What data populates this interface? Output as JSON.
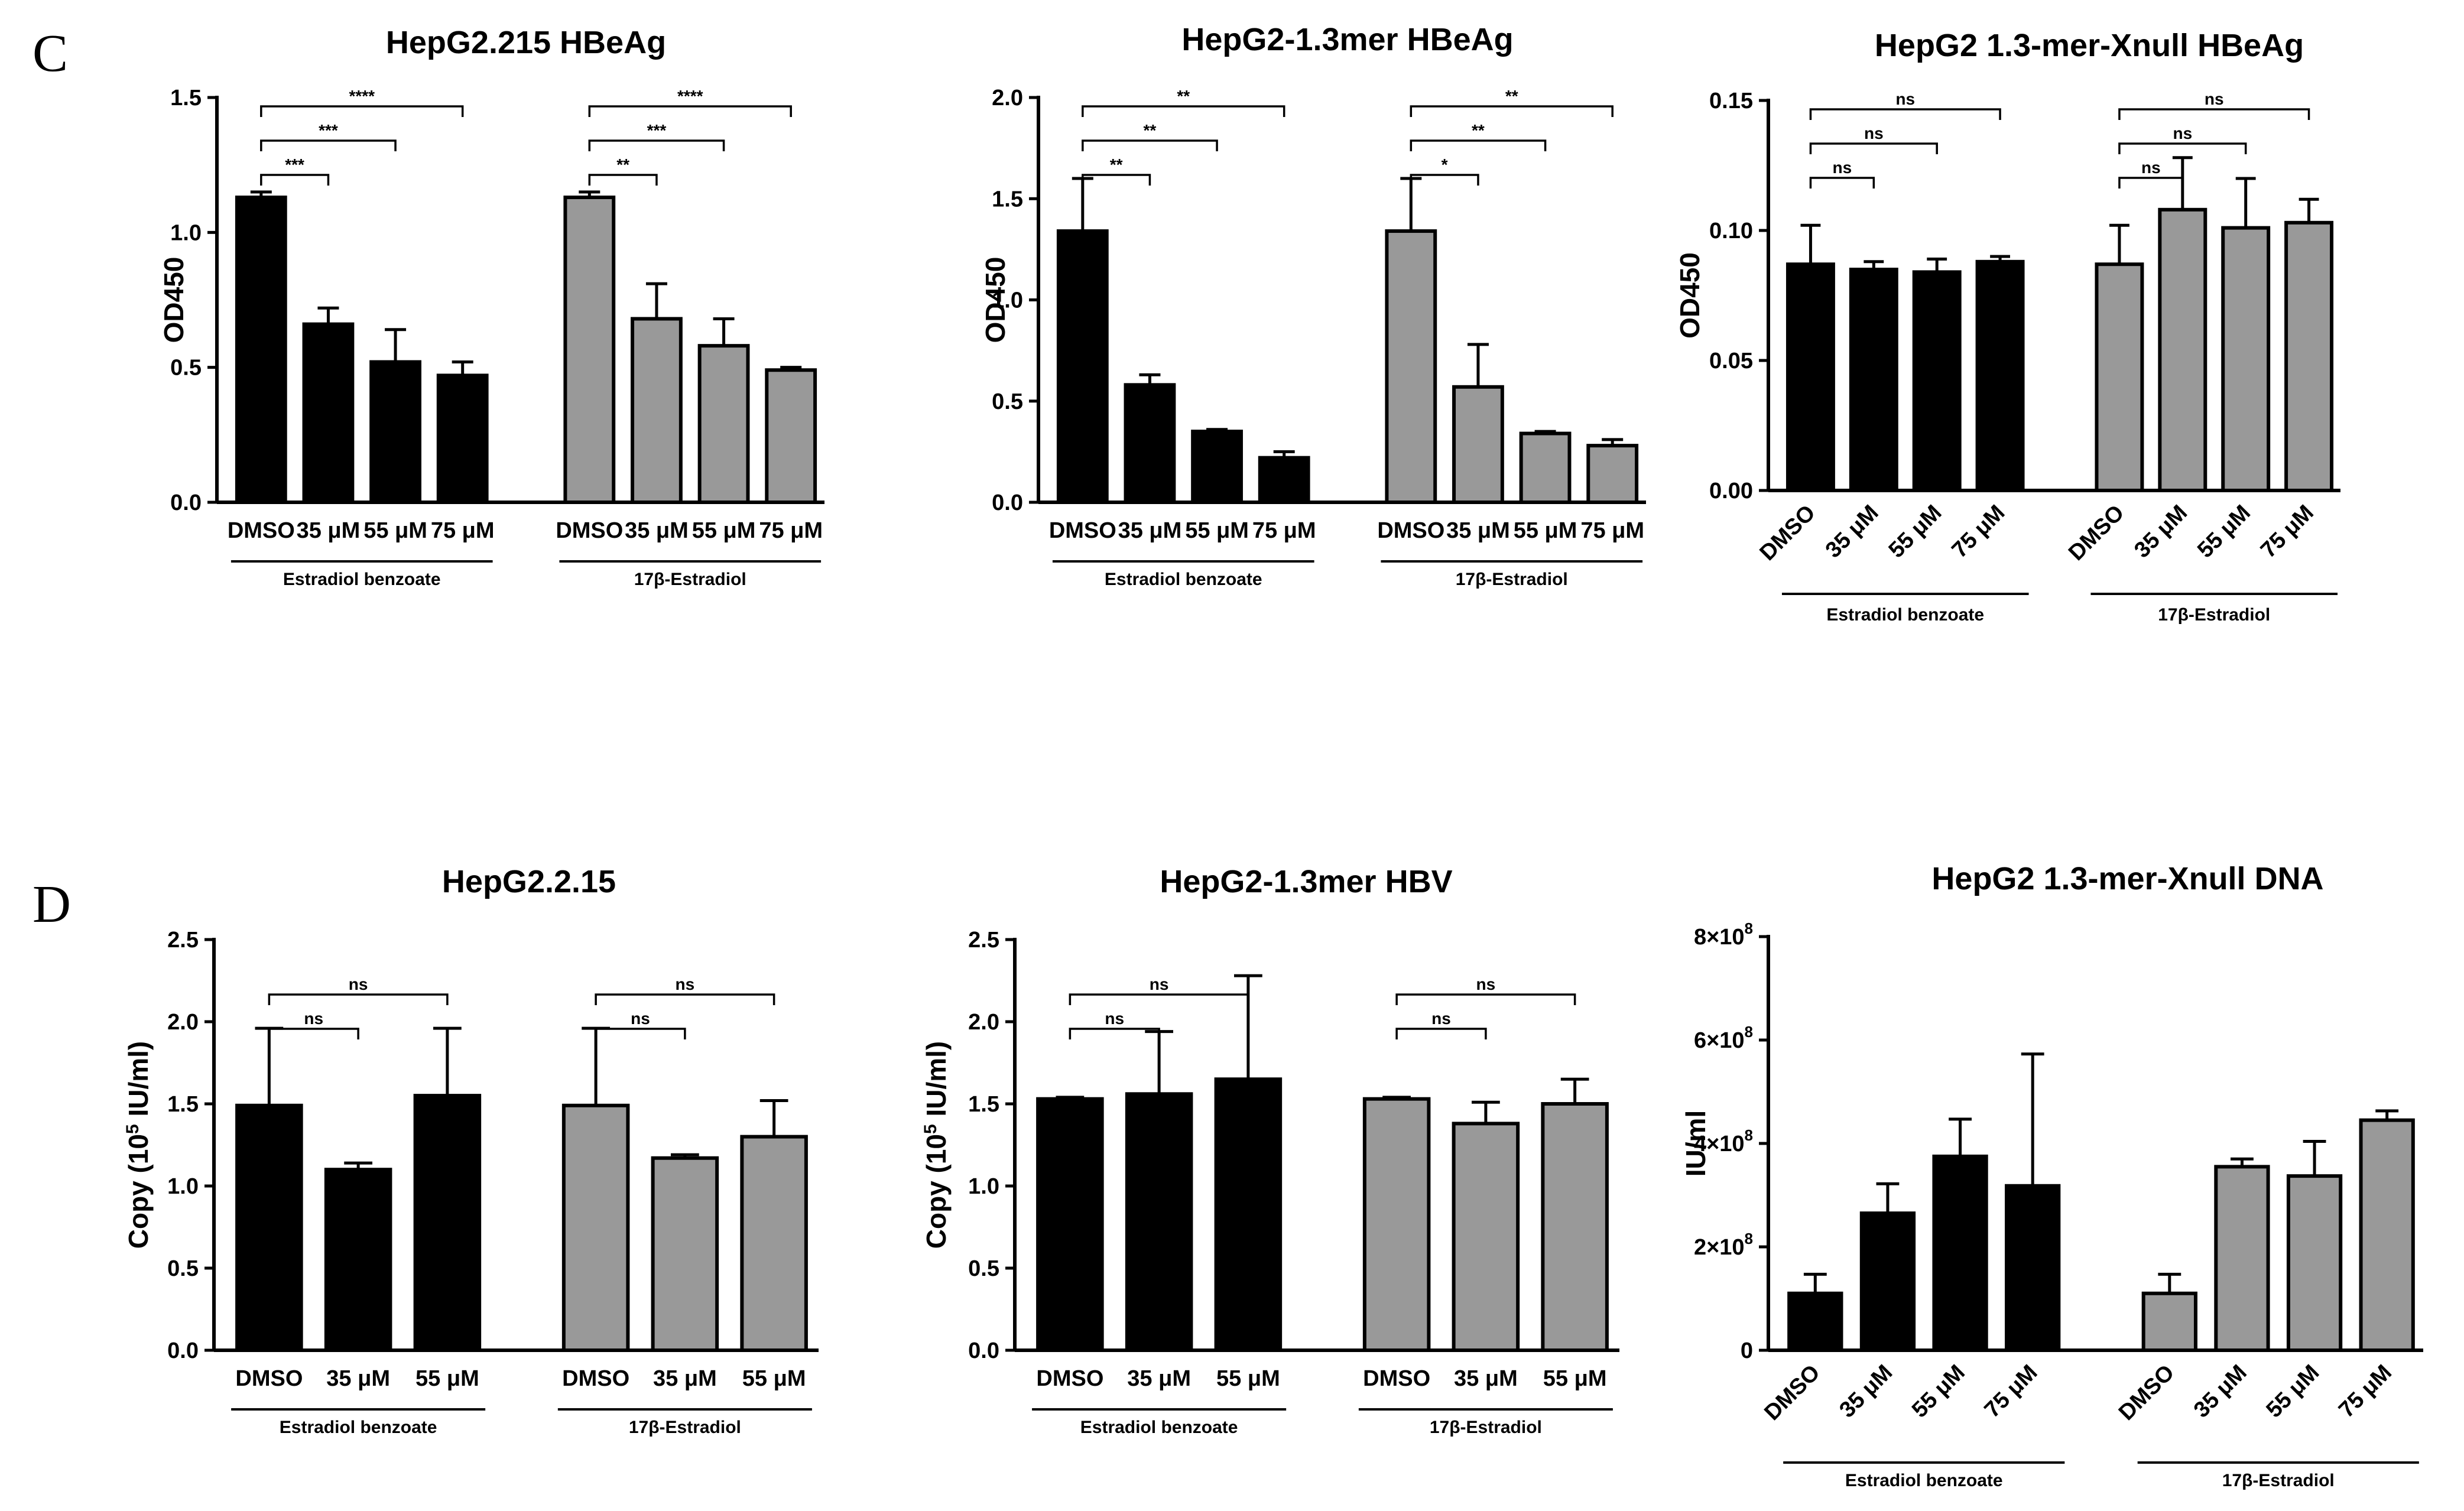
{
  "panel_labels": [
    "C",
    "D"
  ],
  "colors": {
    "estradiol_benzoate": "#000000",
    "estradiol_17b": "#999999",
    "edge": "#000000"
  },
  "chart_data": [
    {
      "type": "bar",
      "title": "HepG2.215   HBeAg",
      "ylabel": "OD450",
      "ylim": [
        0,
        1.5
      ],
      "yticks": [
        "0.0",
        "0.5",
        "1.0",
        "1.5"
      ],
      "yticks_values": [
        0,
        0.5,
        1.0,
        1.5
      ],
      "groups": [
        "Estradiol benzoate",
        "17β-Estradiol"
      ],
      "categories": [
        "DMSO",
        "35 μM",
        "55 μM",
        "75 μM"
      ],
      "rotated_labels": false,
      "series": [
        {
          "name": "Estradiol benzoate",
          "values": [
            1.13,
            0.66,
            0.52,
            0.47
          ],
          "errors": [
            0.02,
            0.06,
            0.12,
            0.05
          ]
        },
        {
          "name": "17β-Estradiol",
          "values": [
            1.13,
            0.68,
            0.58,
            0.49
          ],
          "errors": [
            0.02,
            0.13,
            0.1,
            0.01
          ]
        }
      ],
      "significance": [
        {
          "group": 0,
          "to": 1,
          "label": "***",
          "level": 0
        },
        {
          "group": 0,
          "to": 2,
          "label": "***",
          "level": 1
        },
        {
          "group": 0,
          "to": 3,
          "label": "****",
          "level": 2
        },
        {
          "group": 1,
          "to": 1,
          "label": "**",
          "level": 0
        },
        {
          "group": 1,
          "to": 2,
          "label": "***",
          "level": 1
        },
        {
          "group": 1,
          "to": 3,
          "label": "****",
          "level": 2
        }
      ]
    },
    {
      "type": "bar",
      "title": "HepG2-1.3mer HBeAg",
      "ylabel": "OD450",
      "ylim": [
        0,
        2.0
      ],
      "yticks": [
        "0.0",
        "0.5",
        "1.0",
        "1.5",
        "2.0"
      ],
      "yticks_values": [
        0,
        0.5,
        1.0,
        1.5,
        2.0
      ],
      "groups": [
        "Estradiol benzoate",
        "17β-Estradiol"
      ],
      "categories": [
        "DMSO",
        "35 μM",
        "55 μM",
        "75 μM"
      ],
      "rotated_labels": false,
      "series": [
        {
          "name": "Estradiol benzoate",
          "values": [
            1.34,
            0.58,
            0.35,
            0.22
          ],
          "errors": [
            0.26,
            0.05,
            0.01,
            0.03
          ]
        },
        {
          "name": "17β-Estradiol",
          "values": [
            1.34,
            0.57,
            0.34,
            0.28
          ],
          "errors": [
            0.26,
            0.21,
            0.01,
            0.03
          ]
        }
      ],
      "significance": [
        {
          "group": 0,
          "to": 1,
          "label": "**",
          "level": 0
        },
        {
          "group": 0,
          "to": 2,
          "label": "**",
          "level": 1
        },
        {
          "group": 0,
          "to": 3,
          "label": "**",
          "level": 2
        },
        {
          "group": 1,
          "to": 1,
          "label": "*",
          "level": 0
        },
        {
          "group": 1,
          "to": 2,
          "label": "**",
          "level": 1
        },
        {
          "group": 1,
          "to": 3,
          "label": "**",
          "level": 2
        }
      ]
    },
    {
      "type": "bar",
      "title": "HepG2 1.3-mer-Xnull HBeAg",
      "ylabel": "OD450",
      "ylim": [
        0,
        0.15
      ],
      "yticks": [
        "0.00",
        "0.05",
        "0.10",
        "0.15"
      ],
      "yticks_values": [
        0,
        0.05,
        0.1,
        0.15
      ],
      "groups": [
        "Estradiol benzoate",
        "17β-Estradiol"
      ],
      "categories": [
        "DMSO",
        "35 μM",
        "55 μM",
        "75 μM"
      ],
      "rotated_labels": true,
      "series": [
        {
          "name": "Estradiol benzoate",
          "values": [
            0.087,
            0.085,
            0.084,
            0.088
          ],
          "errors": [
            0.015,
            0.003,
            0.005,
            0.002
          ]
        },
        {
          "name": "17β-Estradiol",
          "values": [
            0.087,
            0.108,
            0.101,
            0.103
          ],
          "errors": [
            0.015,
            0.02,
            0.019,
            0.009
          ]
        }
      ],
      "significance": [
        {
          "group": 0,
          "to": 1,
          "label": "ns",
          "level": 0
        },
        {
          "group": 0,
          "to": 2,
          "label": "ns",
          "level": 1
        },
        {
          "group": 0,
          "to": 3,
          "label": "ns",
          "level": 2
        },
        {
          "group": 1,
          "to": 1,
          "label": "ns",
          "level": 0
        },
        {
          "group": 1,
          "to": 2,
          "label": "ns",
          "level": 1
        },
        {
          "group": 1,
          "to": 3,
          "label": "ns",
          "level": 2
        }
      ]
    },
    {
      "type": "bar",
      "title": "HepG2.2.15",
      "ylabel": "Copy (10",
      "ylabel_sup": "5",
      "ylabel_suffix": " IU/ml)",
      "ylim": [
        0,
        2.5
      ],
      "yticks": [
        "0.0",
        "0.5",
        "1.0",
        "1.5",
        "2.0",
        "2.5"
      ],
      "yticks_values": [
        0,
        0.5,
        1.0,
        1.5,
        2.0,
        2.5
      ],
      "groups": [
        "Estradiol benzoate",
        "17β-Estradiol"
      ],
      "categories": [
        "DMSO",
        "35 μM",
        "55 μM"
      ],
      "rotated_labels": false,
      "series": [
        {
          "name": "Estradiol benzoate",
          "values": [
            1.49,
            1.1,
            1.55
          ],
          "errors": [
            0.47,
            0.04,
            0.41
          ]
        },
        {
          "name": "17β-Estradiol",
          "values": [
            1.49,
            1.17,
            1.3
          ],
          "errors": [
            0.47,
            0.02,
            0.22
          ]
        }
      ],
      "significance": [
        {
          "group": 0,
          "to": 1,
          "label": "ns",
          "level": 0
        },
        {
          "group": 0,
          "to": 2,
          "label": "ns",
          "level": 1
        },
        {
          "group": 1,
          "to": 1,
          "label": "ns",
          "level": 0
        },
        {
          "group": 1,
          "to": 2,
          "label": "ns",
          "level": 1
        }
      ]
    },
    {
      "type": "bar",
      "title": "HepG2-1.3mer HBV",
      "ylabel": "Copy (10",
      "ylabel_sup": "5",
      "ylabel_suffix": " IU/ml)",
      "ylim": [
        0,
        2.5
      ],
      "yticks": [
        "0.0",
        "0.5",
        "1.0",
        "1.5",
        "2.0",
        "2.5"
      ],
      "yticks_values": [
        0,
        0.5,
        1.0,
        1.5,
        2.0,
        2.5
      ],
      "groups": [
        "Estradiol benzoate",
        "17β-Estradiol"
      ],
      "categories": [
        "DMSO",
        "35 μM",
        "55 μM"
      ],
      "rotated_labels": false,
      "series": [
        {
          "name": "Estradiol benzoate",
          "values": [
            1.53,
            1.56,
            1.65
          ],
          "errors": [
            0.01,
            0.38,
            0.63
          ]
        },
        {
          "name": "17β-Estradiol",
          "values": [
            1.53,
            1.38,
            1.5
          ],
          "errors": [
            0.01,
            0.13,
            0.15
          ]
        }
      ],
      "significance": [
        {
          "group": 0,
          "to": 1,
          "label": "ns",
          "level": 0
        },
        {
          "group": 0,
          "to": 2,
          "label": "ns",
          "level": 1
        },
        {
          "group": 1,
          "to": 1,
          "label": "ns",
          "level": 0
        },
        {
          "group": 1,
          "to": 2,
          "label": "ns",
          "level": 1
        }
      ]
    },
    {
      "type": "bar",
      "title": "HepG2 1.3-mer-Xnull DNA",
      "ylabel": "IU/ml",
      "ylim": [
        0,
        800000000
      ],
      "yticks": [
        "0",
        "2×10",
        "4×10",
        "6×10",
        "8×10"
      ],
      "yticks_sup": [
        "",
        "8",
        "8",
        "8",
        "8"
      ],
      "yticks_values": [
        0,
        200000000,
        400000000,
        600000000,
        800000000
      ],
      "groups": [
        "Estradiol benzoate",
        "17β-Estradiol"
      ],
      "categories": [
        "DMSO",
        "35 μM",
        "55 μM",
        "75 μM"
      ],
      "rotated_labels": true,
      "series": [
        {
          "name": "Estradiol benzoate",
          "values": [
            110000000,
            265000000,
            375000000,
            318000000
          ],
          "errors": [
            37000000,
            57000000,
            72000000,
            255000000
          ]
        },
        {
          "name": "17β-Estradiol",
          "values": [
            110000000,
            355000000,
            337000000,
            445000000
          ],
          "errors": [
            37000000,
            15000000,
            67000000,
            18000000
          ]
        }
      ],
      "significance": []
    }
  ]
}
